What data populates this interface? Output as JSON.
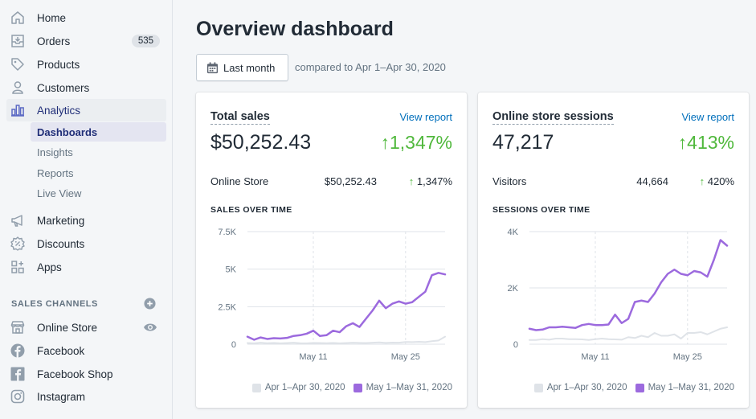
{
  "sidebar": {
    "items": [
      {
        "label": "Home",
        "icon": "home-icon"
      },
      {
        "label": "Orders",
        "icon": "orders-icon",
        "badge": "535"
      },
      {
        "label": "Products",
        "icon": "tag-icon"
      },
      {
        "label": "Customers",
        "icon": "person-icon"
      },
      {
        "label": "Analytics",
        "icon": "bar-chart-icon"
      }
    ],
    "analytics_sub": [
      "Dashboards",
      "Insights",
      "Reports",
      "Live View"
    ],
    "items2": [
      {
        "label": "Marketing",
        "icon": "megaphone-icon"
      },
      {
        "label": "Discounts",
        "icon": "discount-icon"
      },
      {
        "label": "Apps",
        "icon": "apps-icon"
      }
    ],
    "sales_channels_title": "SALES CHANNELS",
    "channels": [
      {
        "label": "Online Store",
        "icon": "store-icon"
      },
      {
        "label": "Facebook",
        "icon": "facebook-icon"
      },
      {
        "label": "Facebook Shop",
        "icon": "facebook-shop-icon"
      },
      {
        "label": "Instagram",
        "icon": "instagram-icon"
      }
    ]
  },
  "header": {
    "title": "Overview dashboard",
    "date_button": "Last month",
    "compare_text": "compared to Apr 1–Apr 30, 2020"
  },
  "colors": {
    "accent": "#9c6ade",
    "previous": "#dfe3e8",
    "positive": "#50b83c",
    "link": "#006fbb"
  },
  "cards": [
    {
      "title": "Total sales",
      "view_report": "View report",
      "value": "$50,252.43",
      "change": "↑1,347%",
      "row_label": "Online Store",
      "row_value": "$50,252.43",
      "row_change": "1,347%",
      "row_arrow": "↑",
      "chart_title": "SALES OVER TIME",
      "legend_prev": "Apr 1–Apr 30, 2020",
      "legend_curr": "May 1–May 31, 2020"
    },
    {
      "title": "Online store sessions",
      "view_report": "View report",
      "value": "47,217",
      "change": "↑413%",
      "row_label": "Visitors",
      "row_value": "44,664",
      "row_change": "420%",
      "row_arrow": "↑",
      "chart_title": "SESSIONS OVER TIME",
      "legend_prev": "Apr 1–Apr 30, 2020",
      "legend_curr": "May 1–May 31, 2020"
    }
  ],
  "chart_data": [
    {
      "type": "line",
      "title": "SALES OVER TIME",
      "x": [
        1,
        2,
        3,
        4,
        5,
        6,
        7,
        8,
        9,
        10,
        11,
        12,
        13,
        14,
        15,
        16,
        17,
        18,
        19,
        20,
        21,
        22,
        23,
        24,
        25,
        26,
        27,
        28,
        29,
        30,
        31
      ],
      "x_ticks": [
        {
          "day": 11,
          "label": "May 11"
        },
        {
          "day": 25,
          "label": "May 25"
        }
      ],
      "y_ticks": [
        {
          "v": 0,
          "label": "0"
        },
        {
          "v": 2500,
          "label": "2.5K"
        },
        {
          "v": 5000,
          "label": "5K"
        },
        {
          "v": 7500,
          "label": "7.5K"
        }
      ],
      "ylim": [
        0,
        7500
      ],
      "series": [
        {
          "name": "Apr 1–Apr 30, 2020",
          "color": "#dfe3e8",
          "values": [
            80,
            60,
            100,
            70,
            90,
            60,
            80,
            100,
            70,
            60,
            90,
            80,
            70,
            90,
            60,
            80,
            100,
            90,
            80,
            100,
            120,
            90,
            110,
            100,
            150,
            140,
            160,
            140,
            200,
            250,
            500
          ]
        },
        {
          "name": "May 1–May 31, 2020",
          "color": "#9c6ade",
          "values": [
            500,
            300,
            450,
            350,
            400,
            380,
            420,
            550,
            600,
            700,
            900,
            550,
            600,
            900,
            800,
            1200,
            1400,
            1150,
            1700,
            2250,
            2900,
            2400,
            2700,
            2850,
            2700,
            2800,
            3150,
            3500,
            4600,
            4750,
            4650
          ]
        }
      ]
    },
    {
      "type": "line",
      "title": "SESSIONS OVER TIME",
      "x": [
        1,
        2,
        3,
        4,
        5,
        6,
        7,
        8,
        9,
        10,
        11,
        12,
        13,
        14,
        15,
        16,
        17,
        18,
        19,
        20,
        21,
        22,
        23,
        24,
        25,
        26,
        27,
        28,
        29,
        30,
        31
      ],
      "x_ticks": [
        {
          "day": 11,
          "label": "May 11"
        },
        {
          "day": 25,
          "label": "May 25"
        }
      ],
      "y_ticks": [
        {
          "v": 0,
          "label": "0"
        },
        {
          "v": 2000,
          "label": "2K"
        },
        {
          "v": 4000,
          "label": "4K"
        }
      ],
      "ylim": [
        0,
        4000
      ],
      "series": [
        {
          "name": "Apr 1–Apr 30, 2020",
          "color": "#dfe3e8",
          "values": [
            150,
            150,
            180,
            160,
            200,
            200,
            180,
            180,
            170,
            150,
            180,
            200,
            180,
            170,
            160,
            250,
            220,
            300,
            250,
            400,
            300,
            300,
            350,
            200,
            400,
            400,
            430,
            350,
            450,
            550,
            600
          ]
        },
        {
          "name": "May 1–May 31, 2020",
          "color": "#9c6ade",
          "values": [
            550,
            500,
            520,
            600,
            600,
            620,
            600,
            580,
            680,
            720,
            680,
            680,
            700,
            1050,
            750,
            900,
            1500,
            1550,
            1500,
            1800,
            2200,
            2500,
            2650,
            2500,
            2450,
            2600,
            2550,
            2400,
            3000,
            3700,
            3500
          ]
        }
      ]
    }
  ]
}
